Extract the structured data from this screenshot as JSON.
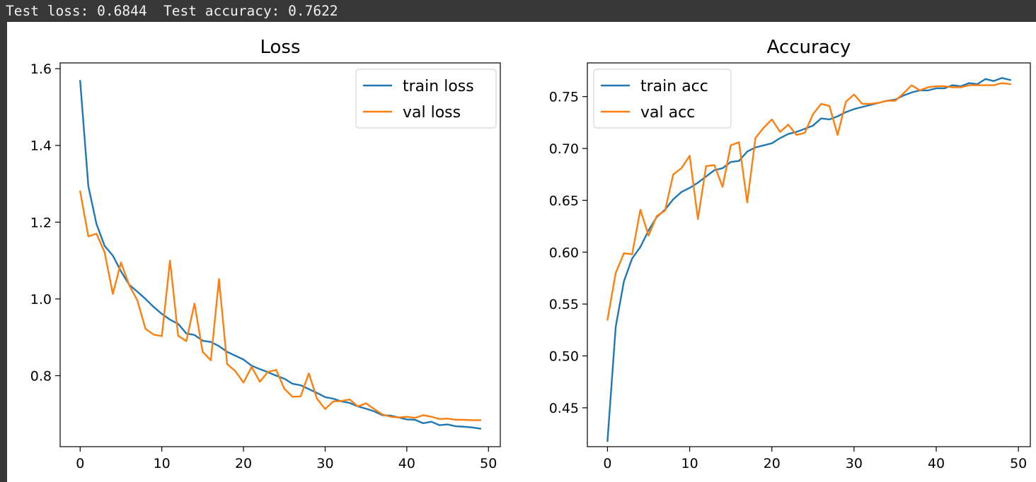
{
  "console": {
    "output_text": "Test loss: 0.6844  Test accuracy: 0.7622"
  },
  "chart_data": [
    {
      "type": "line",
      "title": "Loss",
      "xlabel": "",
      "ylabel": "",
      "xlim": [
        -2.45,
        51.45
      ],
      "ylim": [
        0.615,
        1.615
      ],
      "xticks": [
        0,
        10,
        20,
        30,
        40,
        50
      ],
      "yticks": [
        0.8,
        1.0,
        1.2,
        1.4,
        1.6
      ],
      "ytick_labels": [
        "0.8",
        "1.0",
        "1.2",
        "1.4",
        "1.6"
      ],
      "grid": false,
      "legend_position": "upper right",
      "series": [
        {
          "name": "train loss",
          "color": "#1f77b4",
          "x": [
            0,
            1,
            2,
            3,
            4,
            5,
            6,
            7,
            8,
            9,
            10,
            11,
            12,
            13,
            14,
            15,
            16,
            17,
            18,
            19,
            20,
            21,
            22,
            23,
            24,
            25,
            26,
            27,
            28,
            29,
            30,
            31,
            32,
            33,
            34,
            35,
            36,
            37,
            38,
            39,
            40,
            41,
            42,
            43,
            44,
            45,
            46,
            47,
            48,
            49
          ],
          "values": [
            1.568,
            1.294,
            1.195,
            1.138,
            1.113,
            1.072,
            1.037,
            1.019,
            1.0,
            0.979,
            0.961,
            0.946,
            0.935,
            0.91,
            0.906,
            0.891,
            0.888,
            0.877,
            0.862,
            0.852,
            0.842,
            0.826,
            0.817,
            0.809,
            0.8,
            0.792,
            0.779,
            0.775,
            0.765,
            0.755,
            0.744,
            0.74,
            0.733,
            0.729,
            0.72,
            0.714,
            0.707,
            0.697,
            0.696,
            0.691,
            0.686,
            0.685,
            0.676,
            0.68,
            0.671,
            0.673,
            0.668,
            0.667,
            0.665,
            0.662
          ]
        },
        {
          "name": "val loss",
          "color": "#ff7f0e",
          "x": [
            0,
            1,
            2,
            3,
            4,
            5,
            6,
            7,
            8,
            9,
            10,
            11,
            12,
            13,
            14,
            15,
            16,
            17,
            18,
            19,
            20,
            21,
            22,
            23,
            24,
            25,
            26,
            27,
            28,
            29,
            30,
            31,
            32,
            33,
            34,
            35,
            36,
            37,
            38,
            39,
            40,
            41,
            42,
            43,
            44,
            45,
            46,
            47,
            48,
            49
          ],
          "values": [
            1.28,
            1.163,
            1.17,
            1.121,
            1.013,
            1.095,
            1.036,
            0.996,
            0.922,
            0.907,
            0.903,
            1.1,
            0.904,
            0.89,
            0.988,
            0.862,
            0.84,
            1.052,
            0.83,
            0.812,
            0.782,
            0.823,
            0.784,
            0.81,
            0.815,
            0.766,
            0.745,
            0.746,
            0.806,
            0.74,
            0.713,
            0.733,
            0.734,
            0.738,
            0.72,
            0.728,
            0.713,
            0.699,
            0.693,
            0.691,
            0.693,
            0.69,
            0.697,
            0.693,
            0.687,
            0.688,
            0.685,
            0.685,
            0.684,
            0.684
          ]
        }
      ]
    },
    {
      "type": "line",
      "title": "Accuracy",
      "xlabel": "",
      "ylabel": "",
      "xlim": [
        -2.45,
        51.45
      ],
      "ylim": [
        0.4125,
        0.7825
      ],
      "xticks": [
        0,
        10,
        20,
        30,
        40,
        50
      ],
      "yticks": [
        0.45,
        0.5,
        0.55,
        0.6,
        0.65,
        0.7,
        0.75
      ],
      "ytick_labels": [
        "0.45",
        "0.50",
        "0.55",
        "0.60",
        "0.65",
        "0.70",
        "0.75"
      ],
      "grid": false,
      "legend_position": "upper left",
      "series": [
        {
          "name": "train acc",
          "color": "#1f77b4",
          "x": [
            0,
            1,
            2,
            3,
            4,
            5,
            6,
            7,
            8,
            9,
            10,
            11,
            12,
            13,
            14,
            15,
            16,
            17,
            18,
            19,
            20,
            21,
            22,
            23,
            24,
            25,
            26,
            27,
            28,
            29,
            30,
            31,
            32,
            33,
            34,
            35,
            36,
            37,
            38,
            39,
            40,
            41,
            42,
            43,
            44,
            45,
            46,
            47,
            48,
            49
          ],
          "values": [
            0.418,
            0.528,
            0.572,
            0.594,
            0.605,
            0.621,
            0.634,
            0.641,
            0.651,
            0.658,
            0.662,
            0.667,
            0.673,
            0.679,
            0.681,
            0.687,
            0.688,
            0.697,
            0.701,
            0.703,
            0.705,
            0.71,
            0.714,
            0.716,
            0.719,
            0.722,
            0.729,
            0.728,
            0.731,
            0.735,
            0.738,
            0.74,
            0.742,
            0.744,
            0.746,
            0.747,
            0.751,
            0.754,
            0.756,
            0.756,
            0.758,
            0.758,
            0.761,
            0.76,
            0.763,
            0.762,
            0.767,
            0.765,
            0.768,
            0.766
          ]
        },
        {
          "name": "val acc",
          "color": "#ff7f0e",
          "x": [
            0,
            1,
            2,
            3,
            4,
            5,
            6,
            7,
            8,
            9,
            10,
            11,
            12,
            13,
            14,
            15,
            16,
            17,
            18,
            19,
            20,
            21,
            22,
            23,
            24,
            25,
            26,
            27,
            28,
            29,
            30,
            31,
            32,
            33,
            34,
            35,
            36,
            37,
            38,
            39,
            40,
            41,
            42,
            43,
            44,
            45,
            46,
            47,
            48,
            49
          ],
          "values": [
            0.535,
            0.58,
            0.599,
            0.598,
            0.641,
            0.616,
            0.635,
            0.64,
            0.675,
            0.681,
            0.693,
            0.632,
            0.683,
            0.684,
            0.663,
            0.703,
            0.706,
            0.648,
            0.71,
            0.72,
            0.728,
            0.716,
            0.723,
            0.713,
            0.715,
            0.733,
            0.743,
            0.741,
            0.713,
            0.745,
            0.752,
            0.743,
            0.743,
            0.744,
            0.746,
            0.746,
            0.753,
            0.761,
            0.756,
            0.759,
            0.76,
            0.76,
            0.759,
            0.759,
            0.761,
            0.761,
            0.761,
            0.761,
            0.763,
            0.762
          ]
        }
      ]
    }
  ]
}
